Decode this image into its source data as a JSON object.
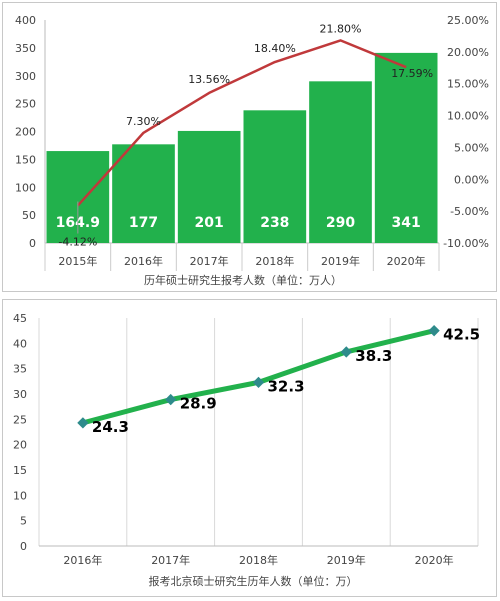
{
  "chart_data": [
    {
      "type": "bar",
      "secondary_type": "line",
      "categories": [
        "2015年",
        "2016年",
        "2017年",
        "2018年",
        "2019年",
        "2020年"
      ],
      "series": [
        {
          "values": [
            164.9,
            177,
            201,
            238,
            290,
            341
          ],
          "labels": [
            "164.9",
            "177",
            "201",
            "238",
            "290",
            "341"
          ],
          "color": "#22b14c"
        },
        {
          "values": [
            -4.12,
            7.3,
            13.56,
            18.4,
            21.8,
            17.59
          ],
          "labels": [
            "-4.12%",
            "7.30%",
            "13.56%",
            "18.40%",
            "21.80%",
            "17.59%"
          ],
          "color": "#c0393b",
          "axis": "right"
        }
      ],
      "xlabel": "历年硕士研究生报考人数（单位：万人）",
      "ylim": [
        0,
        400
      ],
      "yticks": [
        "0",
        "50",
        "100",
        "150",
        "200",
        "250",
        "300",
        "350",
        "400"
      ],
      "y2lim": [
        -10,
        25
      ],
      "y2ticks": [
        "-10.00%",
        "-5.00%",
        "0.00%",
        "5.00%",
        "10.00%",
        "15.00%",
        "20.00%",
        "25.00%"
      ],
      "grid": false
    },
    {
      "type": "line",
      "categories": [
        "2016年",
        "2017年",
        "2018年",
        "2019年",
        "2020年"
      ],
      "series": [
        {
          "values": [
            24.3,
            28.9,
            32.3,
            38.3,
            42.5
          ],
          "labels": [
            "24.3",
            "28.9",
            "32.3",
            "38.3",
            "42.5"
          ],
          "color": "#22b14c",
          "marker_color": "#2e8b8b"
        }
      ],
      "xlabel": "报考北京硕士研究生历年人数（单位：万）",
      "ylim": [
        0,
        45
      ],
      "yticks": [
        "0",
        "5",
        "10",
        "15",
        "20",
        "25",
        "30",
        "35",
        "40",
        "45"
      ],
      "grid": true
    }
  ]
}
